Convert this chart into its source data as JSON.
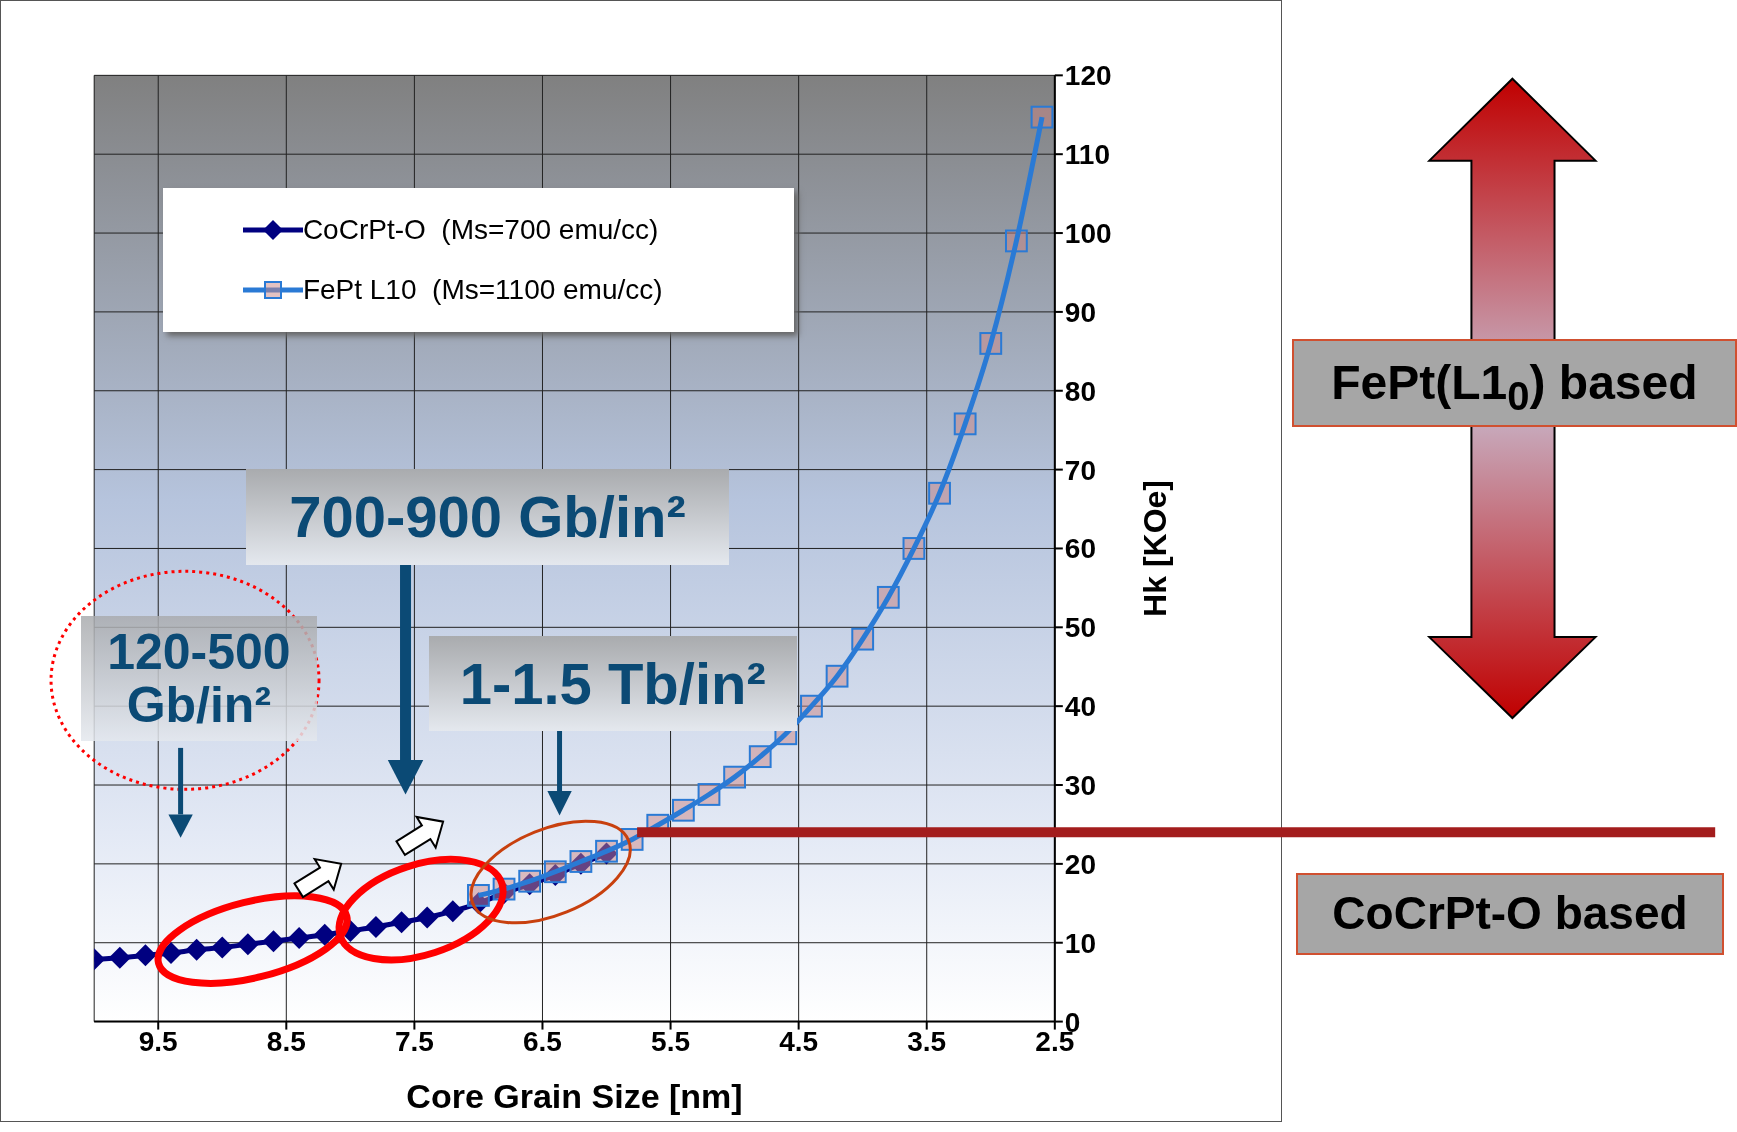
{
  "chart_data": {
    "type": "line",
    "xlabel": "Core Grain Size [nm]",
    "ylabel": "Hk  [KOe]",
    "xlim": [
      10,
      2.5
    ],
    "xticks": [
      9.5,
      8.5,
      7.5,
      6.5,
      5.5,
      4.5,
      3.5,
      2.5
    ],
    "ylim": [
      0,
      120
    ],
    "yticks": [
      0,
      10,
      20,
      30,
      40,
      50,
      60,
      70,
      80,
      90,
      100,
      110,
      120
    ],
    "grid": true,
    "legend": "top left",
    "line_style": "solid",
    "series": [
      {
        "name": "CoCrPt-O  (Ms=700 emu/cc)",
        "color": "#000080",
        "marker": "diamond",
        "x": [
          10,
          9.8,
          9.6,
          9.4,
          9.2,
          9,
          8.8,
          8.6,
          8.4,
          8.2,
          8,
          7.8,
          7.6,
          7.4,
          7.2,
          7,
          6.8,
          6.6,
          6.4,
          6.2,
          6
        ],
        "values": [
          7.9,
          8.1,
          8.4,
          8.7,
          9.1,
          9.4,
          9.8,
          10.2,
          10.6,
          11,
          11.5,
          12,
          12.6,
          13.2,
          14,
          15,
          16.3,
          17.4,
          18.6,
          20,
          21.3
        ]
      },
      {
        "name": "FePt L10  (Ms=1100 emu/cc)",
        "color": "#2a7ad5",
        "marker": "square",
        "x": [
          7,
          6.8,
          6.6,
          6.4,
          6.2,
          6,
          5.8,
          5.6,
          5.4,
          5.2,
          5,
          4.8,
          4.6,
          4.4,
          4.2,
          4,
          3.8,
          3.6,
          3.4,
          3.2,
          3,
          2.8,
          2.6
        ],
        "values": [
          16,
          16.8,
          17.8,
          19,
          20.3,
          21.6,
          23.1,
          24.9,
          26.8,
          28.8,
          31,
          33.6,
          36.5,
          40,
          43.8,
          48.5,
          53.8,
          60,
          67,
          75.8,
          86,
          99,
          114.7
        ]
      }
    ],
    "ref_lines": [
      {
        "axis": "y",
        "value": 24,
        "color": "#a31d1d"
      }
    ],
    "annotations": [
      "120-500 Gb/in²",
      "700-900 Gb/in²",
      "1-1.5 Tb/in²",
      "FePt(L1$_{0}$) based",
      "CoCrPt-O based"
    ]
  }
}
